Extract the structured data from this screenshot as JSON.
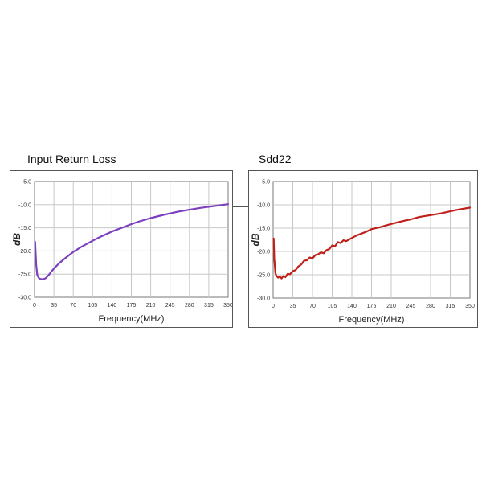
{
  "chart_data": [
    {
      "type": "line",
      "title": "Input Return Loss",
      "xlabel": "Frequency(MHz)",
      "ylabel": "dB",
      "xlim": [
        0,
        350
      ],
      "ylim": [
        -30,
        -5
      ],
      "xticks": [
        "0",
        "35",
        "70",
        "105",
        "140",
        "175",
        "210",
        "245",
        "280",
        "315",
        "350"
      ],
      "yticks": [
        "-5.0",
        "-10.0",
        "-15.0",
        "-20.0",
        "-25.0",
        "-30.0"
      ],
      "grid": true,
      "color": "#7b3fbf",
      "series": [
        {
          "x": [
            1,
            3,
            5,
            8,
            12,
            16,
            20,
            25,
            30,
            35,
            45,
            55,
            70,
            85,
            105,
            120,
            140,
            160,
            175,
            190,
            210,
            230,
            245,
            260,
            280,
            300,
            315,
            330,
            350
          ],
          "values": [
            -18.0,
            -23.0,
            -25.2,
            -25.9,
            -26.1,
            -26.1,
            -25.9,
            -25.3,
            -24.5,
            -23.8,
            -22.6,
            -21.6,
            -20.2,
            -19.1,
            -17.8,
            -16.9,
            -15.8,
            -14.9,
            -14.2,
            -13.6,
            -12.9,
            -12.3,
            -11.9,
            -11.5,
            -11.1,
            -10.7,
            -10.45,
            -10.2,
            -9.9
          ]
        }
      ]
    },
    {
      "type": "line",
      "title": "Sdd22",
      "xlabel": "Frequency(MHz)",
      "ylabel": "dB",
      "xlim": [
        0,
        350
      ],
      "ylim": [
        -30,
        -5
      ],
      "xticks": [
        "0",
        "35",
        "70",
        "105",
        "140",
        "175",
        "210",
        "245",
        "280",
        "315",
        "350"
      ],
      "yticks": [
        "-5.0",
        "-10.0",
        "-15.0",
        "-20.0",
        "-25.0",
        "-30.0"
      ],
      "grid": true,
      "color": "#c0201a",
      "series": [
        {
          "x": [
            1,
            2,
            4,
            6,
            9,
            12,
            15,
            18,
            22,
            26,
            30,
            35,
            40,
            45,
            50,
            55,
            60,
            65,
            70,
            75,
            80,
            85,
            90,
            95,
            100,
            105,
            110,
            115,
            120,
            125,
            130,
            140,
            150,
            165,
            175,
            190,
            210,
            230,
            245,
            260,
            280,
            300,
            315,
            330,
            350
          ],
          "values": [
            -17.2,
            -21.5,
            -24.6,
            -25.3,
            -25.6,
            -25.4,
            -25.8,
            -25.3,
            -25.5,
            -24.8,
            -24.9,
            -24.2,
            -24.0,
            -23.2,
            -22.8,
            -22.0,
            -21.9,
            -21.3,
            -21.5,
            -20.8,
            -20.6,
            -20.2,
            -20.4,
            -19.7,
            -19.5,
            -18.7,
            -18.9,
            -18.0,
            -18.2,
            -17.6,
            -17.8,
            -17.1,
            -16.5,
            -15.8,
            -15.2,
            -14.8,
            -14.1,
            -13.5,
            -13.1,
            -12.6,
            -12.2,
            -11.8,
            -11.4,
            -11.0,
            -10.6
          ]
        }
      ]
    }
  ]
}
